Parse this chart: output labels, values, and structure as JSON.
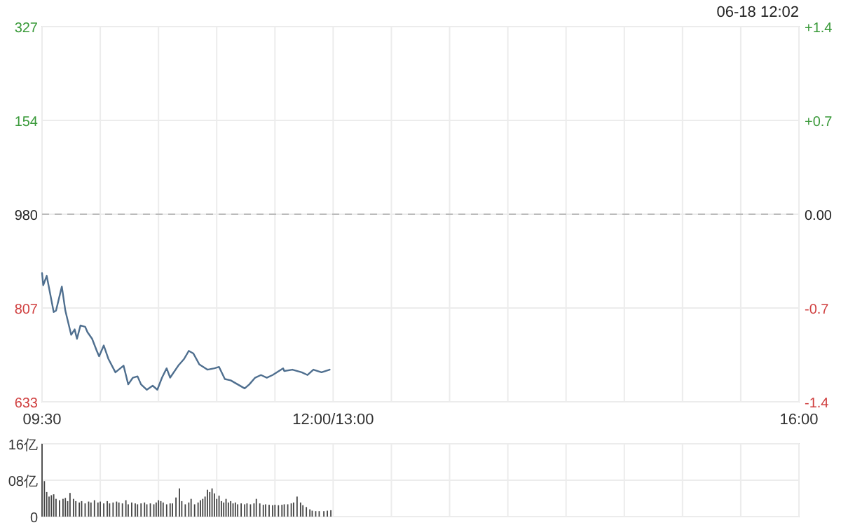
{
  "chart_data": [
    {
      "type": "line",
      "annotations": [
        "06-18 12:02",
        "327",
        "154",
        "980",
        "807",
        "633"
      ],
      "x": [
        9.5,
        9.51,
        9.54,
        9.6,
        9.62,
        9.67,
        9.7,
        9.75,
        9.78,
        9.8,
        9.83,
        9.87,
        9.89,
        9.93,
        9.97,
        9.99,
        10.03,
        10.07,
        10.13,
        10.2,
        10.24,
        10.28,
        10.32,
        10.35,
        10.4,
        10.45,
        10.49,
        10.53,
        10.57,
        10.6,
        10.67,
        10.72,
        10.76,
        10.8,
        10.85,
        10.92,
        10.98,
        11.02,
        11.07,
        11.12,
        11.18,
        11.24,
        11.28,
        11.33,
        11.38,
        11.43,
        11.48,
        11.57,
        11.58,
        11.65,
        11.73,
        11.78,
        11.83,
        11.9,
        11.97
      ],
      "series": [
        {
          "color": "#4f6f8f",
          "values": [
            -0.44,
            -0.53,
            -0.46,
            -0.73,
            -0.72,
            -0.54,
            -0.72,
            -0.9,
            -0.86,
            -0.93,
            -0.83,
            -0.84,
            -0.88,
            -0.93,
            -1.02,
            -1.06,
            -0.98,
            -1.08,
            -1.18,
            -1.13,
            -1.27,
            -1.22,
            -1.21,
            -1.27,
            -1.31,
            -1.28,
            -1.31,
            -1.22,
            -1.15,
            -1.22,
            -1.13,
            -1.08,
            -1.02,
            -1.04,
            -1.12,
            -1.16,
            -1.15,
            -1.14,
            -1.23,
            -1.24,
            -1.27,
            -1.3,
            -1.27,
            -1.22,
            -1.2,
            -1.22,
            -1.2,
            -1.15,
            -1.17,
            -1.16,
            -1.18,
            -1.2,
            -1.16,
            -1.18,
            -1.16
          ]
        }
      ],
      "xlim": [
        9.5,
        16
      ],
      "xticks": [
        {
          "value": 9.5,
          "label": "09:30"
        },
        {
          "value": 10,
          "label": null
        },
        {
          "value": 10.5,
          "label": null
        },
        {
          "value": 11,
          "label": null
        },
        {
          "value": 11.5,
          "label": null
        },
        {
          "value": 12,
          "label": "12:00/13:00"
        },
        {
          "value": 12.5,
          "label": null
        },
        {
          "value": 13,
          "label": null
        },
        {
          "value": 13.5,
          "label": null
        },
        {
          "value": 14,
          "label": null
        },
        {
          "value": 14.5,
          "label": null
        },
        {
          "value": 15,
          "label": null
        },
        {
          "value": 15.5,
          "label": null
        },
        {
          "value": 16,
          "label": "16:00"
        }
      ],
      "ylim": [
        -1.4,
        1.4
      ],
      "yticks": [
        {
          "value": 1.4,
          "label": "+1.4"
        },
        {
          "value": 0.7,
          "label": "+0.7"
        },
        {
          "value": 0,
          "label": "0.00"
        },
        {
          "value": -0.7,
          "label": "-0.7"
        },
        {
          "value": -1.4,
          "label": "-1.4"
        }
      ],
      "ref_lines": [
        {
          "axis": "y",
          "value": 0,
          "label": null,
          "color": "#bbbbbb",
          "line_style": "dashed"
        }
      ],
      "grid": true
    },
    {
      "type": "bar",
      "x": [
        9.5,
        9.52,
        9.54,
        9.56,
        9.58,
        9.6,
        9.62,
        9.65,
        9.68,
        9.7,
        9.72,
        9.74,
        9.77,
        9.79,
        9.82,
        9.84,
        9.87,
        9.9,
        9.92,
        9.95,
        9.98,
        10.0,
        10.03,
        10.06,
        10.08,
        10.11,
        10.14,
        10.16,
        10.19,
        10.22,
        10.24,
        10.27,
        10.3,
        10.32,
        10.35,
        10.38,
        10.4,
        10.43,
        10.46,
        10.48,
        10.5,
        10.52,
        10.54,
        10.57,
        10.6,
        10.62,
        10.65,
        10.68,
        10.7,
        10.73,
        10.76,
        10.78,
        10.81,
        10.84,
        10.86,
        10.88,
        10.9,
        10.92,
        10.94,
        10.96,
        10.98,
        11.0,
        11.02,
        11.04,
        11.06,
        11.08,
        11.1,
        11.12,
        11.14,
        11.16,
        11.18,
        11.21,
        11.24,
        11.26,
        11.29,
        11.32,
        11.34,
        11.37,
        11.4,
        11.42,
        11.45,
        11.48,
        11.5,
        11.53,
        11.56,
        11.58,
        11.61,
        11.64,
        11.66,
        11.69,
        11.72,
        11.74,
        11.77,
        11.8,
        11.82,
        11.85,
        11.88,
        11.92,
        11.95,
        11.98
      ],
      "series": [
        {
          "color": "#444444",
          "values": [
            16,
            7.8,
            5.4,
            4.4,
            4.7,
            4.9,
            3.9,
            3.6,
            3.9,
            4.1,
            3.4,
            5.2,
            3.9,
            3.4,
            3.1,
            3.4,
            2.9,
            3.3,
            3.1,
            3.6,
            3.1,
            3.3,
            2.9,
            3.4,
            2.9,
            3.1,
            3.3,
            3.1,
            2.9,
            3.6,
            2.7,
            3.1,
            2.9,
            2.7,
            2.9,
            3.1,
            2.7,
            2.9,
            2.7,
            3.1,
            3.6,
            3.4,
            3.1,
            2.7,
            2.9,
            2.9,
            4.2,
            6.2,
            3.4,
            2.7,
            3.1,
            3.9,
            2.7,
            3.1,
            3.6,
            3.9,
            4.4,
            5.9,
            5.4,
            6.2,
            5.1,
            3.9,
            4.6,
            3.4,
            3.1,
            3.9,
            3.1,
            3.4,
            2.9,
            3.1,
            2.7,
            2.9,
            2.7,
            2.9,
            2.7,
            2.9,
            3.9,
            2.9,
            2.6,
            2.7,
            2.6,
            2.5,
            2.6,
            2.5,
            2.6,
            2.7,
            2.7,
            2.9,
            3.1,
            4.4,
            3.1,
            2.5,
            2.1,
            1.6,
            1.3,
            1.2,
            1.2,
            1.2,
            1.3,
            1.4
          ]
        }
      ],
      "xlim": [
        9.5,
        16
      ],
      "xticks": [
        9.5,
        10,
        10.5,
        11,
        11.5,
        12,
        12.5,
        13,
        13.5,
        14,
        14.5,
        15,
        15.5,
        16
      ],
      "ylim": [
        0,
        16
      ],
      "yticks": [
        {
          "value": 16,
          "label": "16亿"
        },
        {
          "value": 8,
          "label": "08亿"
        },
        {
          "value": 0,
          "label": "0"
        }
      ],
      "tick_labels": "y",
      "grid": true
    }
  ]
}
